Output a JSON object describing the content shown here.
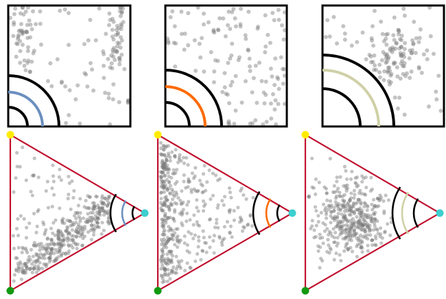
{
  "figure": {
    "background": "#ffffff",
    "frame_color": "#000000",
    "point_color": "#7a7a7a",
    "triangle_color": "#c0102e",
    "vertex_colors": {
      "top": "#ffeb00",
      "bottom": "#119911",
      "right": "#3dcfcf"
    }
  },
  "panels": [
    {
      "id": "blue",
      "accent": "#6b8fbf",
      "square_cloud": "edge-spread",
      "triangle_cloud": "lower-left-band"
    },
    {
      "id": "orange",
      "accent": "#ff6a00",
      "square_cloud": "sparse-spread",
      "triangle_cloud": "left-edge-sparse"
    },
    {
      "id": "sage",
      "accent": "#cfd0a6",
      "square_cloud": "upper-right-cluster",
      "triangle_cloud": "center-cluster"
    }
  ]
}
